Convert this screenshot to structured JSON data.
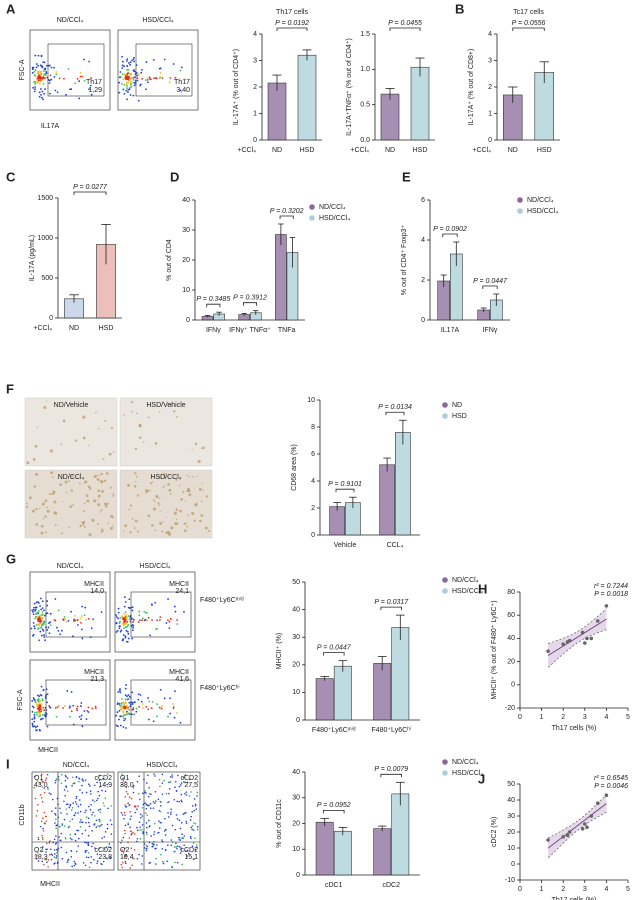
{
  "figure": {
    "panels": [
      "A",
      "B",
      "C",
      "D",
      "E",
      "F",
      "G",
      "H",
      "I",
      "J"
    ]
  },
  "flow": [
    {
      "titles": [
        "ND/CCl₄",
        "HSD/CCl₄"
      ],
      "gates": [
        [
          "Th17",
          "1,29"
        ],
        [
          "Th17",
          "3,40"
        ]
      ],
      "ylabel": "FSC-A",
      "xlabel": "IL17A"
    },
    {
      "titles": [
        "ND/CCl₄",
        "HSD/CCl₄"
      ],
      "gates": [
        [
          "MHCII",
          "14,0"
        ],
        [
          "MHCII",
          "24,1"
        ],
        [
          "MHCII",
          "21,3"
        ],
        [
          "MHCII",
          "41,6"
        ]
      ],
      "row_labels": [
        "F480⁺Ly6Cᵐⁱᵈ",
        "F480⁺Ly6Cʰⁱ"
      ],
      "ylabel": "FSC-A",
      "xlabel": "MHCII"
    },
    {
      "titles": [
        "ND/CCl₄",
        "HSD/CCl₄"
      ],
      "quadrants": [
        [
          [
            "Q1",
            "43,0"
          ],
          [
            "cCD2",
            "14,9"
          ],
          [
            "Q2",
            "18,3"
          ],
          [
            "cCD2",
            "23,8"
          ]
        ],
        [
          [
            "Q1",
            "38,0"
          ],
          [
            "cCD2",
            "27,5"
          ],
          [
            "Q2",
            "19,4"
          ],
          [
            "cCD2",
            "15,1"
          ]
        ]
      ],
      "ylabel": "CD11b",
      "xlabel": "MHCII"
    }
  ],
  "micro": {
    "titles": [
      "ND/Vehicle",
      "HSD/Vehicle",
      "ND/CCl₄",
      "HSD/CCl₄"
    ]
  },
  "chart_data": [
    {
      "type": "bar",
      "title": "Th17 cells",
      "ylabel": "IL-17A⁺ (% out of CD4⁺)",
      "xprefix": "+CCl₄",
      "categories": [
        "ND",
        "HSD"
      ],
      "values": [
        2.15,
        3.2
      ],
      "errors": [
        0.3,
        0.2
      ],
      "colors": [
        "#8a6a9a",
        "#a9cfd8"
      ],
      "pvalue": "P = 0.0192",
      "ylim": [
        0,
        4
      ],
      "yticks": [
        0,
        1,
        2,
        3,
        4
      ]
    },
    {
      "type": "bar",
      "ylabel": "IL-17A⁺TNFα⁺ (% out of CD4⁺)",
      "xprefix": "+CCl₄",
      "categories": [
        "ND",
        "HSD"
      ],
      "values": [
        0.65,
        1.03
      ],
      "errors": [
        0.08,
        0.13
      ],
      "colors": [
        "#8a6a9a",
        "#a9cfd8"
      ],
      "pvalue": "P = 0.0455",
      "ylim": [
        0,
        1.5
      ],
      "yticks": [
        {
          "value": 0,
          "label": "0.0"
        },
        0.5,
        {
          "value": 1,
          "label": "1.0"
        },
        1.5
      ]
    },
    {
      "type": "bar",
      "title": "Tc17 cells",
      "ylabel": "IL-17A⁺ (% out of CD8+)",
      "xprefix": "+CCl₄",
      "categories": [
        "ND",
        "HSD"
      ],
      "values": [
        1.7,
        2.55
      ],
      "errors": [
        0.3,
        0.4
      ],
      "colors": [
        "#8a6a9a",
        "#a9cfd8"
      ],
      "pvalue": "P = 0.0556",
      "ylim": [
        0,
        4
      ],
      "yticks": [
        0,
        1,
        2,
        3,
        4
      ]
    },
    {
      "type": "bar",
      "ylabel": "IL-17A (pg/mL)",
      "xprefix": "+CCl₄",
      "categories": [
        "ND",
        "HSD"
      ],
      "values": [
        240,
        920
      ],
      "errors": [
        50,
        250
      ],
      "colors": [
        "#b9cbe6",
        "#e7a9a4"
      ],
      "pvalue": "P = 0.0277",
      "ylim": [
        0,
        1500
      ],
      "yticks": [
        0,
        500,
        1000,
        1500
      ]
    },
    {
      "type": "bar",
      "ylabel": "% out of CD4",
      "categories": [
        "IFNγ",
        "IFNγ⁺ TNFα⁺",
        "TNFa"
      ],
      "series": [
        {
          "name": "ND/CCl₄",
          "color": "#8a6a9a",
          "values": [
            1.2,
            1.8,
            28.5
          ],
          "errors": [
            0.3,
            0.4,
            3.5
          ]
        },
        {
          "name": "HSD/CCl₄",
          "color": "#a9cfd8",
          "values": [
            2.0,
            2.4,
            22.5
          ],
          "errors": [
            0.6,
            0.7,
            5
          ]
        }
      ],
      "pvalues": [
        "P = 0.3485",
        "P = 0.3912",
        "P = 0.3202"
      ],
      "ylim": [
        0,
        40
      ],
      "yticks": [
        0,
        10,
        20,
        30,
        40
      ]
    },
    {
      "type": "bar",
      "ylabel": "% out of CD4⁺ Foxp3⁺",
      "categories": [
        "IL17A",
        "IFNγ"
      ],
      "series": [
        {
          "name": "ND/CCl₄",
          "color": "#8a6a9a",
          "values": [
            1.95,
            0.5
          ],
          "errors": [
            0.3,
            0.1
          ]
        },
        {
          "name": "HSD/CCl₄",
          "color": "#a9cfd8",
          "values": [
            3.3,
            1.0
          ],
          "errors": [
            0.6,
            0.3
          ]
        }
      ],
      "pvalues": [
        "P = 0.0902",
        "P = 0.0447"
      ],
      "ylim": [
        0,
        6
      ],
      "yticks": [
        0,
        2,
        4,
        6
      ]
    },
    {
      "type": "bar",
      "ylabel": "CD68 area (%)",
      "categories": [
        "Vehicle",
        "CCL₄"
      ],
      "series": [
        {
          "name": "ND",
          "color": "#8a6a9a",
          "values": [
            2.1,
            5.2
          ],
          "errors": [
            0.3,
            0.5
          ]
        },
        {
          "name": "HSD",
          "color": "#a9cfd8",
          "values": [
            2.4,
            7.6
          ],
          "errors": [
            0.4,
            0.9
          ]
        }
      ],
      "pvalues": [
        "P = 0.9101",
        "P = 0.0134"
      ],
      "ylim": [
        0,
        10
      ],
      "yticks": [
        0,
        2,
        4,
        6,
        8,
        10
      ]
    },
    {
      "type": "bar",
      "ylabel": "MHCII⁺ (%)",
      "categories": [
        "F480⁺Ly6Cᵐⁱᵈ",
        "F480⁺Ly6Cʰⁱ"
      ],
      "series": [
        {
          "name": "ND/CCl₄",
          "color": "#8a6a9a",
          "values": [
            15,
            20.5
          ],
          "errors": [
            0.8,
            2.5
          ]
        },
        {
          "name": "HSD/CCl₄",
          "color": "#a9cfd8",
          "values": [
            19.5,
            33.5
          ],
          "errors": [
            2,
            4.5
          ]
        }
      ],
      "pvalues": [
        "P = 0.0447",
        "P = 0.0317"
      ],
      "ylim": [
        0,
        50
      ],
      "yticks": [
        0,
        10,
        20,
        30,
        40,
        50
      ]
    },
    {
      "type": "scatter",
      "ylabel": "MHCII⁺ (% out of F480⁺ Ly6C⁺)",
      "xlabel": "Th17 cells (%)",
      "x": [
        1.3,
        2.0,
        2.2,
        2.3,
        2.9,
        3.0,
        3.1,
        3.3,
        3.6,
        4.0
      ],
      "y": [
        29,
        35,
        37,
        38,
        45,
        36,
        40,
        40,
        55,
        68
      ],
      "annotations": [
        "r² = 0.7244",
        "P = 0.0018"
      ],
      "xlim": [
        0,
        5
      ],
      "xticks": [
        0,
        1,
        2,
        3,
        4,
        5
      ],
      "ylim": [
        -20,
        80
      ],
      "yticks": [
        -20,
        0,
        20,
        40,
        60,
        80
      ],
      "color": "#666666",
      "band_color": "#b48fc2"
    },
    {
      "type": "bar",
      "ylabel": "% out of CD11c",
      "categories": [
        "cDC1",
        "cDC2"
      ],
      "series": [
        {
          "name": "ND/CCl₄",
          "color": "#8a6a9a",
          "values": [
            20.5,
            18
          ],
          "errors": [
            1.5,
            1
          ]
        },
        {
          "name": "HSD/CCl₄",
          "color": "#a9cfd8",
          "values": [
            17,
            31.5
          ],
          "errors": [
            1.5,
            4.5
          ]
        }
      ],
      "pvalues": [
        "P = 0.0952",
        "P = 0.0079"
      ],
      "ylim": [
        0,
        40
      ],
      "yticks": [
        0,
        10,
        20,
        30,
        40
      ]
    },
    {
      "type": "scatter",
      "ylabel": "cDC2 (%)",
      "xlabel": "Th17 cells (%)",
      "x": [
        1.3,
        2.0,
        2.2,
        2.3,
        2.9,
        3.0,
        3.1,
        3.3,
        3.6,
        4.0
      ],
      "y": [
        15,
        17,
        18,
        20,
        22,
        25,
        23,
        30,
        38,
        43
      ],
      "annotations": [
        "r² = 0.6545",
        "P = 0.0046"
      ],
      "xlim": [
        0,
        5
      ],
      "xticks": [
        0,
        1,
        2,
        3,
        4,
        5
      ],
      "ylim": [
        -10,
        50
      ],
      "yticks": [
        -10,
        0,
        10,
        20,
        30,
        40,
        50
      ],
      "color": "#666666",
      "band_color": "#b48fc2"
    }
  ]
}
